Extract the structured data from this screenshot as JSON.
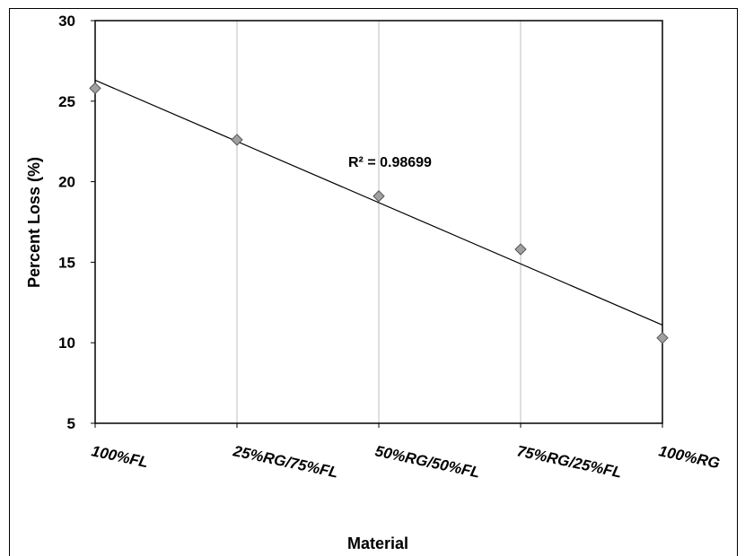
{
  "chart_data": {
    "type": "scatter",
    "title": "",
    "xlabel": "Material",
    "ylabel": "Percent Loss (%)",
    "categories": [
      "100%FL",
      "25%RG/75%FL",
      "50%RG/50%FL",
      "75%RG/25%FL",
      "100%RG"
    ],
    "series": [
      {
        "values": [
          25.8,
          22.6,
          19.1,
          15.8,
          10.3
        ],
        "marker": "diamond",
        "color": "#a0a0a0"
      }
    ],
    "trendline": {
      "type": "linear",
      "start": 26.3,
      "end": 11.1,
      "annotation": "R² = 0.98699"
    },
    "ylim": [
      5,
      30
    ],
    "yticks": [
      "5",
      "10",
      "15",
      "20",
      "25",
      "30"
    ],
    "grid": "vertical",
    "legend": "none"
  }
}
